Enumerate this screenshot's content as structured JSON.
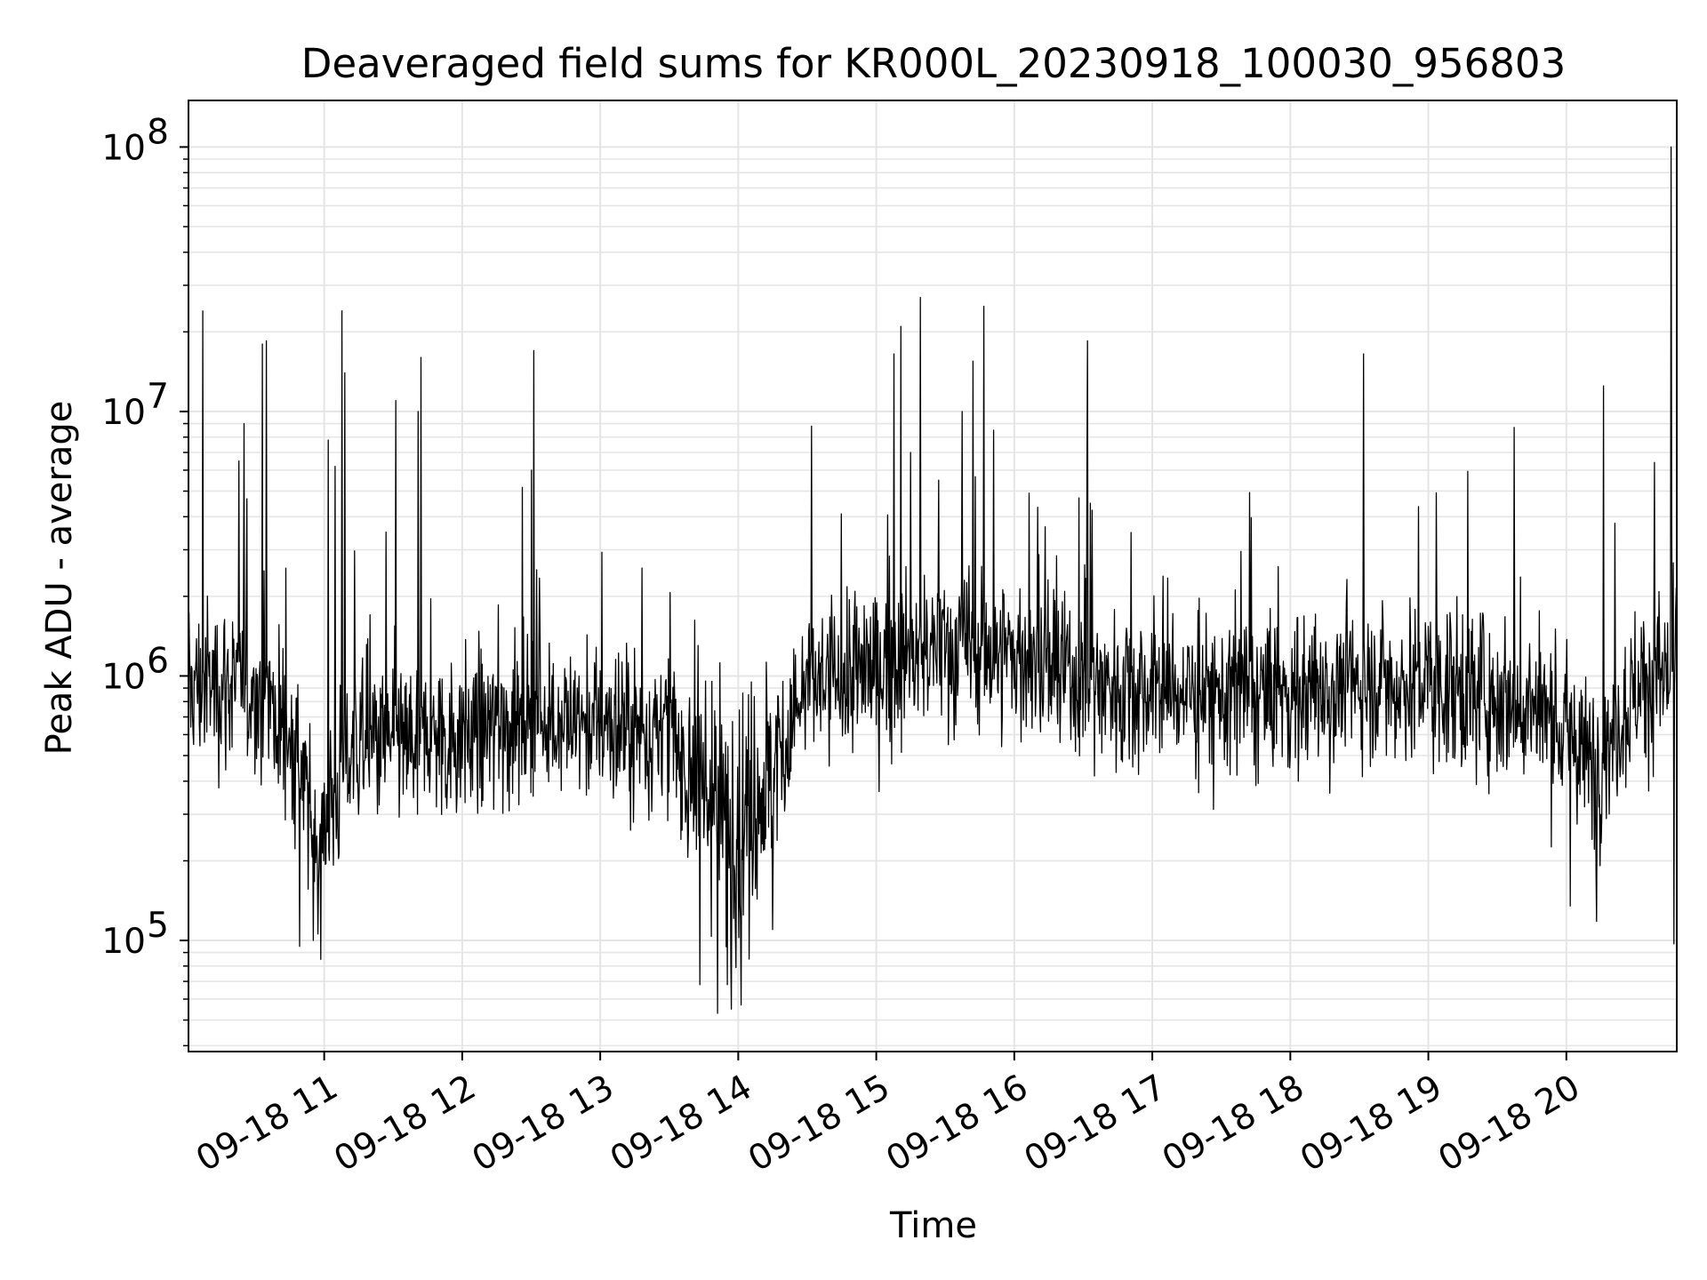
{
  "chart_data": {
    "type": "line",
    "title": "Deaveraged field sums for KR000L_20230918_100030_956803",
    "xlabel": "Time",
    "ylabel": "Peak ADU - average",
    "x_range": [
      "2023-09-18 10:01",
      "2023-09-18 20:48"
    ],
    "y_scale": "log",
    "ylim": [
      38000,
      150000000
    ],
    "grid": true,
    "legend": "none",
    "line_color": "#000000",
    "grid_color": "#e5e5e5",
    "x_ticks": [
      "09-18 11",
      "09-18 12",
      "09-18 13",
      "09-18 14",
      "09-18 15",
      "09-18 16",
      "09-18 17",
      "09-18 18",
      "09-18 19",
      "09-18 20"
    ],
    "y_ticks": [
      {
        "base": "10",
        "exp": "5",
        "value": 100000
      },
      {
        "base": "10",
        "exp": "6",
        "value": 1000000
      },
      {
        "base": "10",
        "exp": "7",
        "value": 10000000
      },
      {
        "base": "10",
        "exp": "8",
        "value": 100000000
      }
    ],
    "series": [
      {
        "baseline_hour": [
          10.0,
          10.3,
          10.6,
          10.8,
          10.95,
          11.2,
          11.6,
          12.0,
          12.5,
          13.0,
          13.5,
          13.8,
          14.0,
          14.3,
          14.5,
          14.8,
          15.2,
          15.6,
          16.0,
          16.5,
          17.0,
          17.5,
          18.0,
          18.5,
          19.0,
          19.5,
          19.9,
          20.2,
          20.5,
          20.8
        ],
        "baseline_value": [
          900000,
          950000,
          800000,
          500000,
          220000,
          550000,
          550000,
          600000,
          700000,
          650000,
          600000,
          350000,
          280000,
          500000,
          900000,
          1000000,
          1150000,
          1300000,
          1200000,
          950000,
          900000,
          850000,
          850000,
          950000,
          950000,
          850000,
          700000,
          450000,
          900000,
          1100000
        ],
        "spikes": [
          {
            "hour": 10.12,
            "value": 24000000
          },
          {
            "hour": 10.38,
            "value": 6500000
          },
          {
            "hour": 10.42,
            "value": 9000000
          },
          {
            "hour": 10.55,
            "value": 18000000
          },
          {
            "hour": 10.58,
            "value": 18500000
          },
          {
            "hour": 11.03,
            "value": 7800000
          },
          {
            "hour": 11.08,
            "value": 6200000
          },
          {
            "hour": 11.13,
            "value": 24000000
          },
          {
            "hour": 11.15,
            "value": 14000000
          },
          {
            "hour": 11.45,
            "value": 3500000
          },
          {
            "hour": 11.52,
            "value": 11000000
          },
          {
            "hour": 11.7,
            "value": 16000000
          },
          {
            "hour": 11.68,
            "value": 10000000
          },
          {
            "hour": 12.52,
            "value": 17000000
          },
          {
            "hour": 12.5,
            "value": 6000000
          },
          {
            "hour": 14.53,
            "value": 8800000
          },
          {
            "hour": 15.13,
            "value": 16500000
          },
          {
            "hour": 15.18,
            "value": 21000000
          },
          {
            "hour": 15.25,
            "value": 7000000
          },
          {
            "hour": 15.32,
            "value": 27000000
          },
          {
            "hour": 15.45,
            "value": 5500000
          },
          {
            "hour": 15.62,
            "value": 10000000
          },
          {
            "hour": 15.7,
            "value": 15500000
          },
          {
            "hour": 15.78,
            "value": 25000000
          },
          {
            "hour": 15.85,
            "value": 8500000
          },
          {
            "hour": 16.53,
            "value": 18500000
          },
          {
            "hour": 16.55,
            "value": 4500000
          },
          {
            "hour": 18.53,
            "value": 16500000
          },
          {
            "hour": 19.62,
            "value": 8700000
          },
          {
            "hour": 20.27,
            "value": 12500000
          },
          {
            "hour": 20.76,
            "value": 100000000
          }
        ],
        "dips": [
          {
            "hour": 10.82,
            "value": 95000
          },
          {
            "hour": 10.92,
            "value": 100000
          },
          {
            "hour": 13.72,
            "value": 68000
          },
          {
            "hour": 13.85,
            "value": 53000
          },
          {
            "hour": 13.95,
            "value": 55000
          },
          {
            "hour": 13.92,
            "value": 68000
          },
          {
            "hour": 14.02,
            "value": 57000
          },
          {
            "hour": 14.08,
            "value": 85000
          },
          {
            "hour": 14.25,
            "value": 110000
          },
          {
            "hour": 20.03,
            "value": 135000
          },
          {
            "hour": 20.22,
            "value": 118000
          },
          {
            "hour": 20.78,
            "value": 97000
          }
        ]
      }
    ]
  }
}
